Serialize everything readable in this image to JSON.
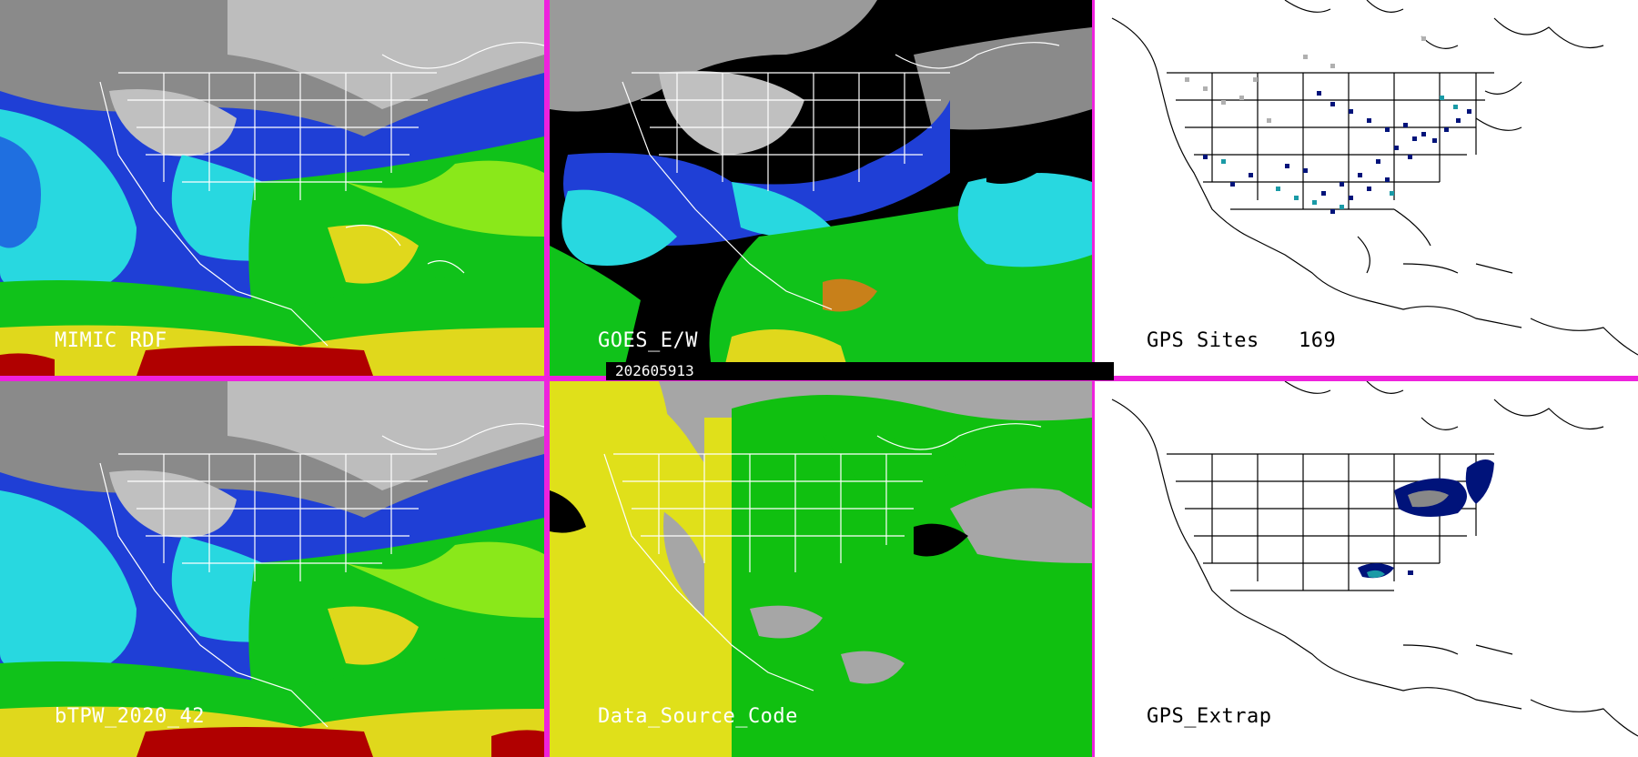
{
  "panels": [
    {
      "id": "mimic",
      "label": "MIMIC RDF"
    },
    {
      "id": "goes",
      "label": "GOES_E/W"
    },
    {
      "id": "gps-sites",
      "label": "GPS Sites",
      "count": "169"
    },
    {
      "id": "btpw",
      "label": "bTPW_2020_42"
    },
    {
      "id": "data-source",
      "label": "Data_Source_Code"
    },
    {
      "id": "gps-extrap",
      "label": "GPS_Extrap"
    }
  ],
  "timestamp": "202605913",
  "colors": {
    "divider": "#ee22dd",
    "tpw_scale": [
      "#3a3a3a",
      "#bdbdbd",
      "#0b0b8a",
      "#1f3fd6",
      "#28d8e0",
      "#10c21a",
      "#8ae81a",
      "#e0d81c",
      "#c8801a",
      "#b00000"
    ],
    "source_codes": [
      "#a6a6a6",
      "#e0e01a",
      "#10c010"
    ],
    "gps_markers": [
      "#00137a",
      "#1a9aa6",
      "#b0b0b0"
    ]
  }
}
